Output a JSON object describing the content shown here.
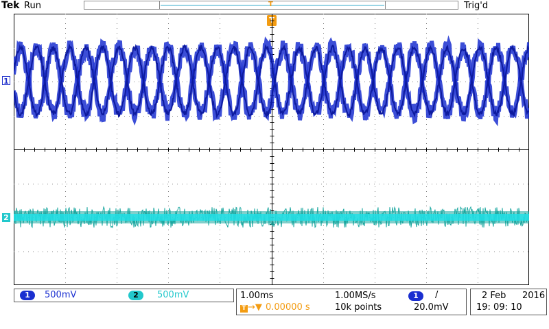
{
  "header": {
    "brand": "Tek",
    "acq_state": "Run",
    "trigger_state": "Trig'd"
  },
  "markers": {
    "ch1": "1",
    "ch2": "2",
    "trigger": "T"
  },
  "channels": [
    {
      "label": "1",
      "scale": "500mV",
      "color": "#1a2fd0"
    },
    {
      "label": "2",
      "scale": "500mV",
      "color": "#22c8cc"
    }
  ],
  "timebase": {
    "scale": "1.00ms",
    "sample_rate": "1.00MS/s",
    "trigger_position": "0.00000 s",
    "record_length": "10k points"
  },
  "trigger": {
    "source": "1",
    "slope_icon": "/",
    "level": "20.0mV"
  },
  "datetime": {
    "date_day": "2 Feb",
    "date_year": "2016",
    "time": "19: 09: 10"
  },
  "colors": {
    "ch1": "#1a2fd0",
    "ch2": "#1aa7a0",
    "ch2_core": "#22e0e6",
    "trigger": "#f39c12",
    "grid": "#000000"
  },
  "icons": [
    "trigger-marker-icon",
    "rising-edge-icon",
    "trigger-position-arrow-icon"
  ]
}
